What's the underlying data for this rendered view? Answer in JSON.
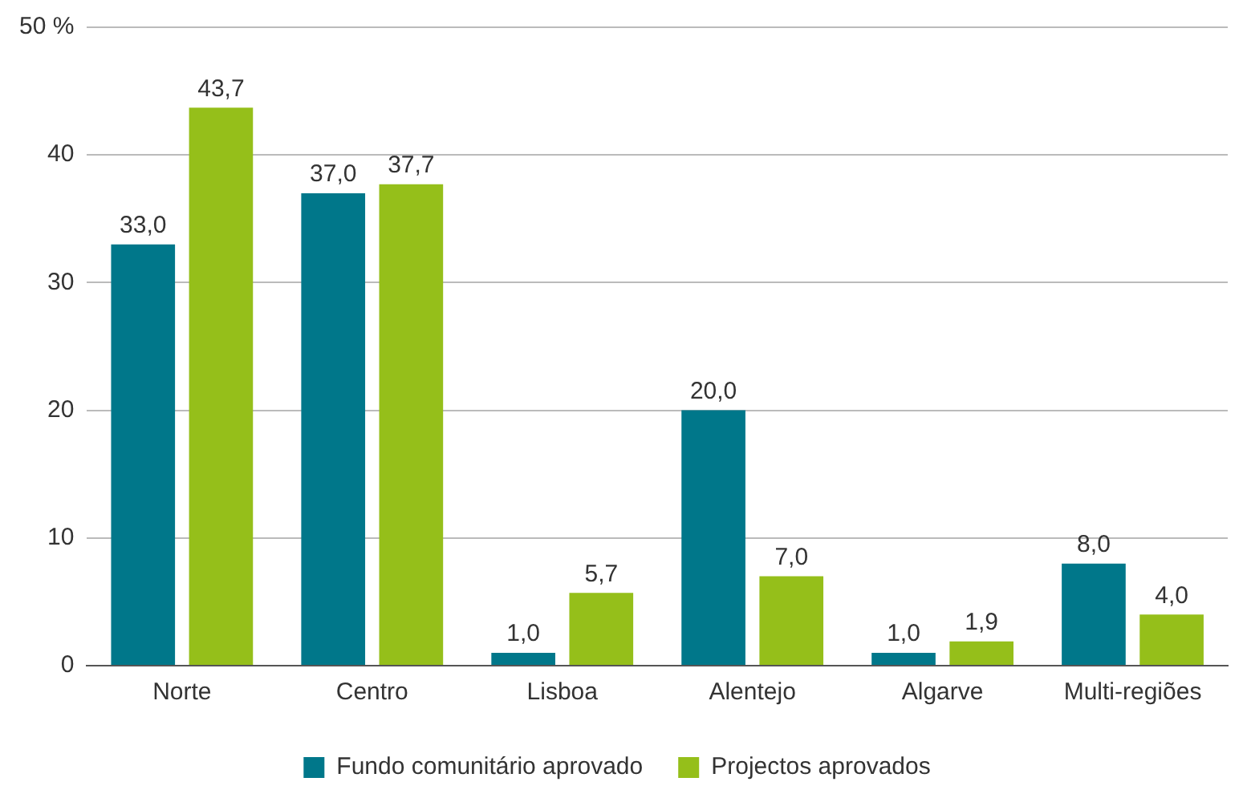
{
  "chart_data": {
    "type": "bar",
    "categories": [
      "Norte",
      "Centro",
      "Lisboa",
      "Alentejo",
      "Algarve",
      "Multi-regiões"
    ],
    "series": [
      {
        "name": "Fundo comunitário aprovado",
        "color": "#00778a",
        "values": [
          33.0,
          37.0,
          1.0,
          20.0,
          1.0,
          8.0
        ],
        "value_labels": [
          "33,0",
          "37,0",
          "1,0",
          "20,0",
          "1,0",
          "8,0"
        ]
      },
      {
        "name": "Projectos aprovados",
        "color": "#95bf1a",
        "values": [
          43.7,
          37.7,
          5.7,
          7.0,
          1.9,
          4.0
        ],
        "value_labels": [
          "43,7",
          "37,7",
          "5,7",
          "7,0",
          "1,9",
          "4,0"
        ]
      }
    ],
    "ylim": [
      0,
      50
    ],
    "yticks": [
      0,
      10,
      20,
      30,
      40,
      {
        "value": 50,
        "label": "50 %"
      }
    ],
    "grid": "y",
    "legend": "bottom"
  }
}
